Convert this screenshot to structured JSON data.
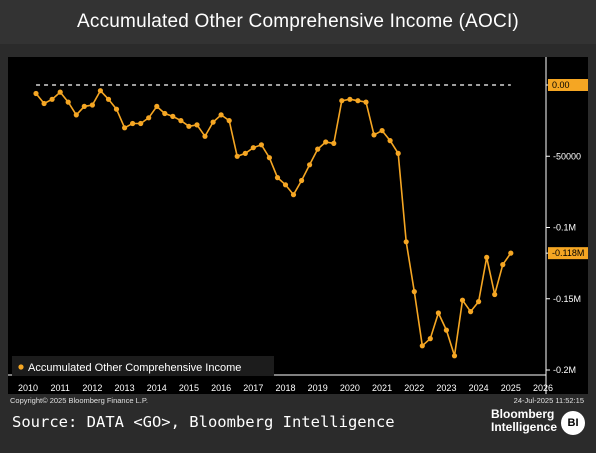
{
  "header": {
    "title": "Accumulated Other Comprehensive Income (AOCI)"
  },
  "footer": {
    "copyright": "Copyright© 2025 Bloomberg Finance L.P.",
    "timestamp": "24-Jul-2025 11:52:15",
    "source": "Source: DATA <GO>, Bloomberg Intelligence",
    "brand_line1": "Bloomberg",
    "brand_line2": "Intelligence",
    "brand_badge": "BI"
  },
  "colors": {
    "series": "#f5a623",
    "background": "#000000",
    "frame": "#2b2b2b"
  },
  "chart_data": {
    "type": "line",
    "title": "Accumulated Other Comprehensive Income (AOCI)",
    "xlabel": "",
    "ylabel": "",
    "x_ticks": [
      "2010",
      "2011",
      "2012",
      "2013",
      "2014",
      "2015",
      "2016",
      "2017",
      "2018",
      "2019",
      "2020",
      "2021",
      "2022",
      "2023",
      "2024",
      "2025",
      "2026"
    ],
    "xlim": [
      2010,
      2026
    ],
    "ylim": [
      -200000,
      20000
    ],
    "y_ticks": [
      {
        "value": 0,
        "label": "0.00",
        "highlight": true
      },
      {
        "value": -50000,
        "label": "-50000"
      },
      {
        "value": -100000,
        "label": "-0.1M"
      },
      {
        "value": -118000,
        "label": "-0.118M",
        "highlight": true
      },
      {
        "value": -150000,
        "label": "-0.15M"
      },
      {
        "value": -200000,
        "label": "-0.2M"
      }
    ],
    "reference_line": {
      "value": 0,
      "x_start": 2010.25,
      "x_end": 2025.0,
      "style": "dashed"
    },
    "legend": {
      "position": "bottom-left",
      "entries": [
        "Accumulated Other Comprehensive Income"
      ]
    },
    "series": [
      {
        "name": "Accumulated Other Comprehensive Income",
        "points": [
          [
            2010.25,
            -6000
          ],
          [
            2010.5,
            -13000
          ],
          [
            2010.75,
            -10000
          ],
          [
            2011.0,
            -5000
          ],
          [
            2011.25,
            -12000
          ],
          [
            2011.5,
            -21000
          ],
          [
            2011.75,
            -15000
          ],
          [
            2012.0,
            -14000
          ],
          [
            2012.25,
            -4000
          ],
          [
            2012.5,
            -10000
          ],
          [
            2012.75,
            -17000
          ],
          [
            2013.0,
            -30000
          ],
          [
            2013.25,
            -27000
          ],
          [
            2013.5,
            -27000
          ],
          [
            2013.75,
            -23000
          ],
          [
            2014.0,
            -15000
          ],
          [
            2014.25,
            -20000
          ],
          [
            2014.5,
            -22000
          ],
          [
            2014.75,
            -25000
          ],
          [
            2015.0,
            -29000
          ],
          [
            2015.25,
            -28000
          ],
          [
            2015.5,
            -36000
          ],
          [
            2015.75,
            -26000
          ],
          [
            2016.0,
            -21000
          ],
          [
            2016.25,
            -25000
          ],
          [
            2016.5,
            -50000
          ],
          [
            2016.75,
            -48000
          ],
          [
            2017.0,
            -44000
          ],
          [
            2017.25,
            -42000
          ],
          [
            2017.5,
            -51000
          ],
          [
            2017.75,
            -65000
          ],
          [
            2018.0,
            -70000
          ],
          [
            2018.25,
            -77000
          ],
          [
            2018.5,
            -67000
          ],
          [
            2018.75,
            -56000
          ],
          [
            2019.0,
            -45000
          ],
          [
            2019.25,
            -40000
          ],
          [
            2019.5,
            -41000
          ],
          [
            2019.75,
            -11000
          ],
          [
            2020.0,
            -10000
          ],
          [
            2020.25,
            -11000
          ],
          [
            2020.5,
            -12000
          ],
          [
            2020.75,
            -35000
          ],
          [
            2021.0,
            -32000
          ],
          [
            2021.25,
            -39000
          ],
          [
            2021.5,
            -48000
          ],
          [
            2021.75,
            -110000
          ],
          [
            2022.0,
            -145000
          ],
          [
            2022.25,
            -183000
          ],
          [
            2022.5,
            -178000
          ],
          [
            2022.75,
            -160000
          ],
          [
            2023.0,
            -172000
          ],
          [
            2023.25,
            -190000
          ],
          [
            2023.5,
            -151000
          ],
          [
            2023.75,
            -159000
          ],
          [
            2024.0,
            -152000
          ],
          [
            2024.25,
            -121000
          ],
          [
            2024.5,
            -147000
          ],
          [
            2024.75,
            -126000
          ],
          [
            2025.0,
            -118000
          ]
        ]
      }
    ]
  }
}
